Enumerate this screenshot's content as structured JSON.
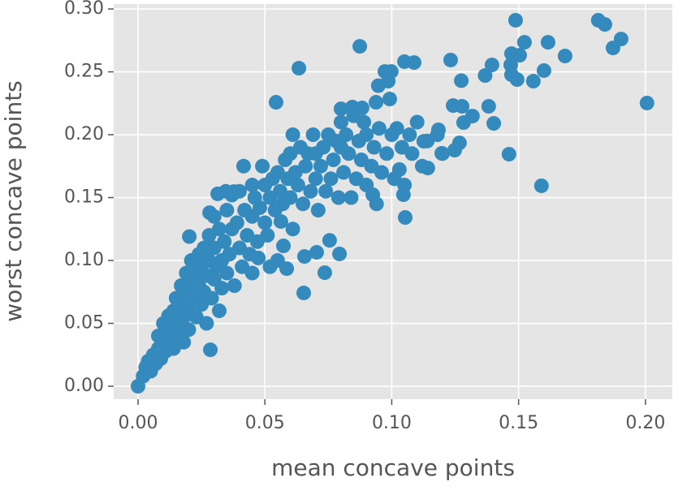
{
  "chart_data": {
    "type": "scatter",
    "xlabel": "mean concave points",
    "ylabel": "worst concave points",
    "color": "#348ABD",
    "grid": true,
    "xlim": [
      -0.0096,
      0.2106
    ],
    "ylim": [
      -0.0103,
      0.3039
    ],
    "xticks": [
      {
        "value": 0,
        "label": "0.00"
      },
      {
        "value": 0.05,
        "label": "0.05"
      },
      {
        "value": 0.1,
        "label": "0.10"
      },
      {
        "value": 0.15,
        "label": "0.15"
      },
      {
        "value": 0.2,
        "label": "0.20"
      }
    ],
    "yticks": [
      {
        "value": 0,
        "label": "0.00"
      },
      {
        "value": 0.05,
        "label": "0.05"
      },
      {
        "value": 0.1,
        "label": "0.10"
      },
      {
        "value": 0.15,
        "label": "0.15"
      },
      {
        "value": 0.2,
        "label": "0.20"
      },
      {
        "value": 0.25,
        "label": "0.25"
      },
      {
        "value": 0.3,
        "label": "0.30"
      }
    ],
    "x": [
      0,
      0.002,
      0.003,
      0.004,
      0.005,
      0.006,
      0.007,
      0.008,
      0.008,
      0.009,
      0.01,
      0.01,
      0.011,
      0.012,
      0.012,
      0.013,
      0.014,
      0.014,
      0.015,
      0.015,
      0.016,
      0.017,
      0.017,
      0.018,
      0.018,
      0.019,
      0.019,
      0.02,
      0.02,
      0.021,
      0.021,
      0.022,
      0.0202,
      0.023,
      0.023,
      0.024,
      0.024,
      0.025,
      0.025,
      0.026,
      0.026,
      0.027,
      0.027,
      0.028,
      0.028,
      0.029,
      0.03,
      0.03,
      0.03,
      0.031,
      0.032,
      0.032,
      0.033,
      0.033,
      0.034,
      0.035,
      0.035,
      0.036,
      0.037,
      0.037,
      0.038,
      0.039,
      0.04,
      0.04,
      0.041,
      0.042,
      0.043,
      0.044,
      0.045,
      0.045,
      0.046,
      0.047,
      0.048,
      0.049,
      0.05,
      0.05,
      0.051,
      0.052,
      0.053,
      0.054,
      0.055,
      0.055,
      0.056,
      0.057,
      0.058,
      0.059,
      0.06,
      0.06,
      0.061,
      0.062,
      0.063,
      0.064,
      0.065,
      0.066,
      0.067,
      0.068,
      0.069,
      0.07,
      0.07,
      0.071,
      0.072,
      0.073,
      0.074,
      0.075,
      0.076,
      0.077,
      0.078,
      0.079,
      0.08,
      0.08,
      0.081,
      0.082,
      0.083,
      0.084,
      0.085,
      0.086,
      0.087,
      0.088,
      0.089,
      0.09,
      0.09,
      0.092,
      0.093,
      0.094,
      0.095,
      0.096,
      0.098,
      0.1,
      0.101,
      0.102,
      0.104,
      0.105,
      0.107,
      0.108,
      0.11,
      0.112,
      0.114,
      0.118,
      0.12,
      0.2006,
      0.1814,
      0.184,
      0.1904,
      0.1872,
      0.1488,
      0.1523,
      0.1616,
      0.1683,
      0.1472,
      0.1504,
      0.1469,
      0.1472,
      0.1494,
      0.1558,
      0.16,
      0.1462,
      0.159,
      0.1395,
      0.1368,
      0.1274,
      0.1232,
      0.1382,
      0.1402,
      0.1318,
      0.1277,
      0.1242,
      0.1283,
      0.1267,
      0.1248,
      0.1197,
      0.1142,
      0.1184,
      0.1126,
      0.0874,
      0.1088,
      0.105,
      0.0634,
      0.0544,
      0.0973,
      0.0998,
      0.0947,
      0.0986,
      0.0992,
      0.0938,
      0.0883,
      0.0845,
      0.08,
      0.1053,
      0.1046,
      0.103,
      0.0925,
      0.0794,
      0.0736,
      0.0653,
      0.0586,
      0.0656,
      0.0704,
      0.0573,
      0.0285,
      0.0416,
      0.0346,
      0.0378,
      0.0314,
      0.0282,
      0.0474,
      0.052,
      0.045,
      0.0755,
      0.0563,
      0.061
    ],
    "values": [
      0,
      0.008,
      0.015,
      0.02,
      0.012,
      0.025,
      0.018,
      0.03,
      0.04,
      0.022,
      0.035,
      0.05,
      0.028,
      0.045,
      0.056,
      0.038,
      0.06,
      0.03,
      0.05,
      0.07,
      0.042,
      0.065,
      0.08,
      0.055,
      0.035,
      0.075,
      0.09,
      0.06,
      0.045,
      0.085,
      0.1,
      0.07,
      0.119,
      0.055,
      0.09,
      0.08,
      0.105,
      0.065,
      0.095,
      0.11,
      0.075,
      0.05,
      0.088,
      0.1,
      0.12,
      0.07,
      0.085,
      0.11,
      0.135,
      0.095,
      0.06,
      0.125,
      0.1,
      0.078,
      0.115,
      0.14,
      0.09,
      0.105,
      0.152,
      0.125,
      0.08,
      0.13,
      0.11,
      0.155,
      0.095,
      0.14,
      0.12,
      0.105,
      0.16,
      0.135,
      0.15,
      0.115,
      0.142,
      0.175,
      0.13,
      0.16,
      0.12,
      0.15,
      0.165,
      0.14,
      0.17,
      0.1,
      0.155,
      0.145,
      0.18,
      0.165,
      0.15,
      0.185,
      0.2,
      0.17,
      0.16,
      0.19,
      0.145,
      0.175,
      0.185,
      0.155,
      0.2,
      0.165,
      0.185,
      0.14,
      0.175,
      0.19,
      0.155,
      0.2,
      0.165,
      0.18,
      0.195,
      0.15,
      0.19,
      0.21,
      0.17,
      0.2,
      0.185,
      0.15,
      0.215,
      0.165,
      0.195,
      0.18,
      0.21,
      0.16,
      0.2,
      0.175,
      0.19,
      0.145,
      0.205,
      0.17,
      0.185,
      0.2,
      0.165,
      0.205,
      0.19,
      0.16,
      0.2,
      0.185,
      0.21,
      0.175,
      0.195,
      0.2,
      0.185,
      0.2252,
      0.291,
      0.2877,
      0.2761,
      0.269,
      0.291,
      0.2735,
      0.2735,
      0.2626,
      0.2645,
      0.2632,
      0.2555,
      0.2477,
      0.2439,
      0.2426,
      0.251,
      0.1845,
      0.1594,
      0.2555,
      0.2471,
      0.243,
      0.2594,
      0.2226,
      0.209,
      0.2148,
      0.2226,
      0.2232,
      0.2097,
      0.1935,
      0.1877,
      0.1852,
      0.1735,
      0.2039,
      0.1948,
      0.2703,
      0.2574,
      0.2581,
      0.2529,
      0.2258,
      0.2503,
      0.2503,
      0.239,
      0.2426,
      0.2284,
      0.2258,
      0.2213,
      0.222,
      0.2206,
      0.1342,
      0.1523,
      0.1723,
      0.1523,
      0.1052,
      0.0903,
      0.0742,
      0.0935,
      0.1032,
      0.1065,
      0.1116,
      0.029,
      0.175,
      0.155,
      0.1548,
      0.153,
      0.138,
      0.102,
      0.095,
      0.09,
      0.116,
      0.131,
      0.125
    ]
  }
}
